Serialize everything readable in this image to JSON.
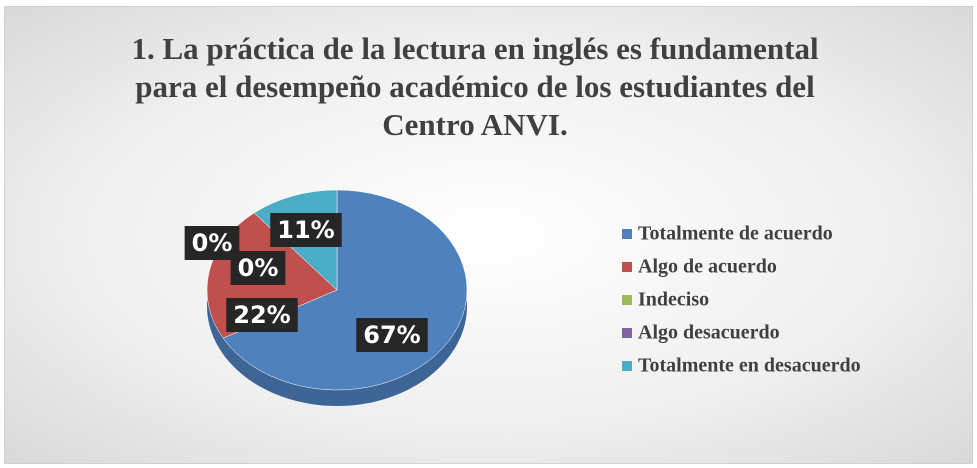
{
  "chart_data": {
    "type": "pie",
    "title": "1. La práctica de la lectura en inglés es fundamental para el desempeño académico de los estudiantes del Centro ANVI.",
    "categories": [
      "Totalmente de acuerdo",
      "Algo de acuerdo",
      "Indeciso",
      "Algo desacuerdo",
      "Totalmente en desacuerdo"
    ],
    "values": [
      67,
      22,
      0,
      0,
      11
    ],
    "value_labels": [
      "67%",
      "22%",
      "0%",
      "0%",
      "11%"
    ],
    "colors": [
      "#4f81bd",
      "#c0504d",
      "#9bbb59",
      "#8064a2",
      "#4bacc6"
    ],
    "legend": "right"
  }
}
